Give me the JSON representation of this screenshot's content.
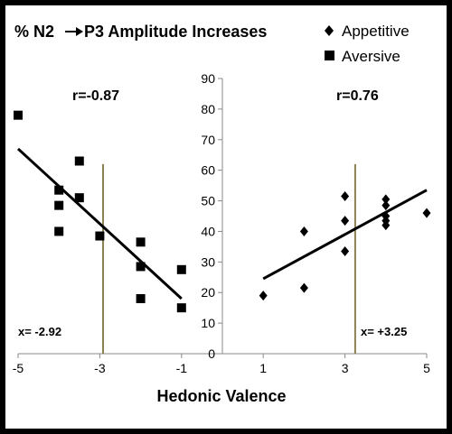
{
  "chart_data": {
    "type": "scatter",
    "title_parts": [
      "% N2",
      "P3 Amplitude Increases"
    ],
    "xlabel": "Hedonic Valence",
    "ylabel": "",
    "xlim": [
      -5,
      5
    ],
    "ylim": [
      0,
      90
    ],
    "x_ticks": [
      "-5",
      "-3",
      "-1",
      "1",
      "3",
      "5"
    ],
    "x_tick_values": [
      -5,
      -3,
      -1,
      1,
      3,
      5
    ],
    "y_ticks": [
      "0",
      "10",
      "20",
      "30",
      "40",
      "50",
      "60",
      "70",
      "80",
      "90"
    ],
    "y_tick_values": [
      0,
      10,
      20,
      30,
      40,
      50,
      60,
      70,
      80,
      90
    ],
    "grid": false,
    "legend_position": "top-right",
    "series": [
      {
        "name": "Appetitive",
        "marker": "diamond",
        "color": "#000000",
        "points": [
          [
            1,
            19
          ],
          [
            2,
            21.5
          ],
          [
            2,
            40
          ],
          [
            3,
            33.5
          ],
          [
            3,
            43.5
          ],
          [
            3,
            51.5
          ],
          [
            4,
            42
          ],
          [
            4,
            43.5
          ],
          [
            4,
            45
          ],
          [
            4,
            48.5
          ],
          [
            4,
            50.5
          ],
          [
            5,
            46
          ]
        ],
        "trend": {
          "x": [
            1,
            5
          ],
          "y": [
            24.5,
            53.5
          ]
        },
        "r_label": "r=0.76",
        "x_marker": 3.25,
        "x_marker_label": "x= +3.25"
      },
      {
        "name": "Aversive",
        "marker": "square",
        "color": "#000000",
        "points": [
          [
            -5,
            78
          ],
          [
            -4,
            53.5
          ],
          [
            -4,
            48.5
          ],
          [
            -4,
            40
          ],
          [
            -3.5,
            63
          ],
          [
            -3.5,
            51
          ],
          [
            -3,
            38.5
          ],
          [
            -2,
            36.5
          ],
          [
            -2,
            28.5
          ],
          [
            -2,
            18
          ],
          [
            -1,
            27.5
          ],
          [
            -1,
            15
          ]
        ],
        "trend": {
          "x": [
            -5,
            -1
          ],
          "y": [
            67,
            18
          ]
        },
        "r_label": "r=-0.87",
        "x_marker": -2.92,
        "x_marker_label": "x= -2.92"
      }
    ],
    "marker_line_color": "#8c8150",
    "trend_line_color": "#000000"
  }
}
